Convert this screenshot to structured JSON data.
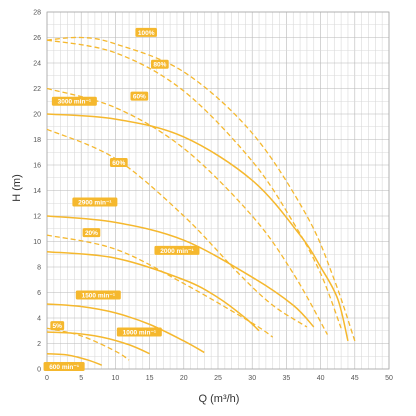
{
  "chart_data": {
    "type": "line",
    "title": "",
    "xlabel": "Q (m³/h)",
    "ylabel": "H (m)",
    "xlim": [
      0,
      50
    ],
    "ylim": [
      0,
      28
    ],
    "x_ticks": [
      0,
      5,
      10,
      15,
      20,
      25,
      30,
      35,
      40,
      45,
      50
    ],
    "y_ticks": [
      0,
      2,
      4,
      6,
      8,
      10,
      12,
      14,
      16,
      18,
      20,
      22,
      24,
      26,
      28
    ],
    "grid": true,
    "curve_color": "#f5b82e",
    "label_bg_color": "#f5b82e",
    "speed_curves": [
      {
        "name": "3000 min⁻¹",
        "x": [
          0,
          10,
          20,
          30,
          37,
          40,
          42.5,
          44
        ],
        "y": [
          20,
          19.6,
          18.2,
          14.8,
          10.5,
          8,
          5.5,
          2.2
        ]
      },
      {
        "name": "2900 min⁻¹",
        "x": [
          0,
          10,
          20,
          30,
          36,
          39
        ],
        "y": [
          12,
          11.5,
          10.1,
          7.2,
          5,
          3.3
        ]
      },
      {
        "name": "2000 min⁻¹",
        "x": [
          0,
          10,
          20,
          25,
          29,
          31
        ],
        "y": [
          9.2,
          8.7,
          7,
          5.6,
          4,
          3
        ]
      },
      {
        "name": "1500 min⁻¹",
        "x": [
          0,
          5,
          10,
          15,
          20,
          23
        ],
        "y": [
          5.1,
          4.9,
          4.4,
          3.5,
          2.2,
          1.3
        ]
      },
      {
        "name": "1000 min⁻¹",
        "x": [
          0,
          4,
          8,
          12,
          15
        ],
        "y": [
          2.9,
          2.8,
          2.5,
          1.9,
          1.2
        ]
      },
      {
        "name": "600 min⁻¹",
        "x": [
          0,
          3,
          6,
          8
        ],
        "y": [
          1.2,
          1.1,
          0.7,
          0.3
        ]
      }
    ],
    "percent_curves": [
      {
        "name": "100%",
        "x": [
          0,
          5,
          10,
          20,
          30,
          38,
          42,
          45
        ],
        "y": [
          25.8,
          26,
          25.5,
          23.3,
          18.5,
          12,
          7,
          2.2
        ]
      },
      {
        "name": "80%",
        "x": [
          0,
          10,
          20,
          30,
          36,
          40,
          43
        ],
        "y": [
          25.8,
          24.8,
          21.8,
          16.3,
          11.5,
          7.5,
          3.2
        ]
      },
      {
        "name": "60%",
        "x": [
          0,
          10,
          20,
          30,
          36,
          41
        ],
        "y": [
          22,
          20.5,
          17.3,
          12,
          7.5,
          2.7
        ]
      },
      {
        "name": "60%",
        "x": [
          0,
          10,
          20,
          28,
          33,
          38
        ],
        "y": [
          18.8,
          16.5,
          12,
          7.5,
          5,
          3.3
        ]
      },
      {
        "name": "20%",
        "x": [
          0,
          10,
          20,
          30,
          33
        ],
        "y": [
          10.5,
          9.4,
          6.7,
          3.6,
          2.5
        ]
      },
      {
        "name": "5%",
        "x": [
          0,
          5,
          10,
          12
        ],
        "y": [
          3.2,
          2.6,
          1.4,
          0.7
        ]
      }
    ],
    "labels": [
      {
        "text": "100%",
        "x": 14.5,
        "y": 26.4
      },
      {
        "text": "80%",
        "x": 16.5,
        "y": 23.9
      },
      {
        "text": "60%",
        "x": 13.5,
        "y": 21.4
      },
      {
        "text": "3000 min⁻¹",
        "x": 4,
        "y": 21.0
      },
      {
        "text": "60%",
        "x": 10.5,
        "y": 16.2
      },
      {
        "text": "2900 min⁻¹",
        "x": 7,
        "y": 13.1
      },
      {
        "text": "20%",
        "x": 6.5,
        "y": 10.7
      },
      {
        "text": "2000 min⁻¹",
        "x": 19,
        "y": 9.3
      },
      {
        "text": "1500 min⁻¹",
        "x": 7.5,
        "y": 5.8
      },
      {
        "text": "5%",
        "x": 1.5,
        "y": 3.4
      },
      {
        "text": "1000 min⁻¹",
        "x": 13.5,
        "y": 2.9
      },
      {
        "text": "600 min⁻¹",
        "x": 2.5,
        "y": 0.2
      }
    ]
  }
}
